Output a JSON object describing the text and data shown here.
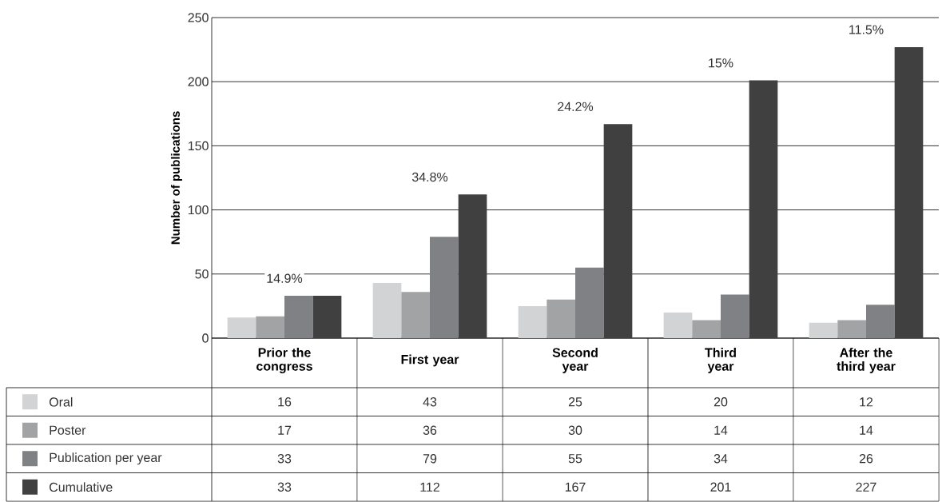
{
  "chart_data": {
    "type": "bar",
    "ylabel": "Number of publications",
    "categories": [
      "Prior the congress",
      "First year",
      "Second year",
      "Third year",
      "After the third year"
    ],
    "series": [
      {
        "name": "Oral",
        "color": "#d2d3d5",
        "values": [
          16,
          43,
          25,
          20,
          12
        ]
      },
      {
        "name": "Poster",
        "color": "#a2a3a5",
        "values": [
          17,
          36,
          30,
          14,
          14
        ]
      },
      {
        "name": "Publication per year",
        "color": "#808184",
        "values": [
          33,
          79,
          55,
          34,
          26
        ]
      },
      {
        "name": "Cumulative",
        "color": "#404040",
        "values": [
          33,
          112,
          167,
          201,
          227
        ]
      }
    ],
    "ylim": [
      0,
      250
    ],
    "yticks": [
      0,
      50,
      100,
      150,
      200,
      250
    ],
    "grid": "y",
    "legend": "bottom left",
    "data_labels": true,
    "annotations": [
      "14.9%",
      "34.8%",
      "24.2%",
      "15%",
      "11.5%"
    ]
  }
}
